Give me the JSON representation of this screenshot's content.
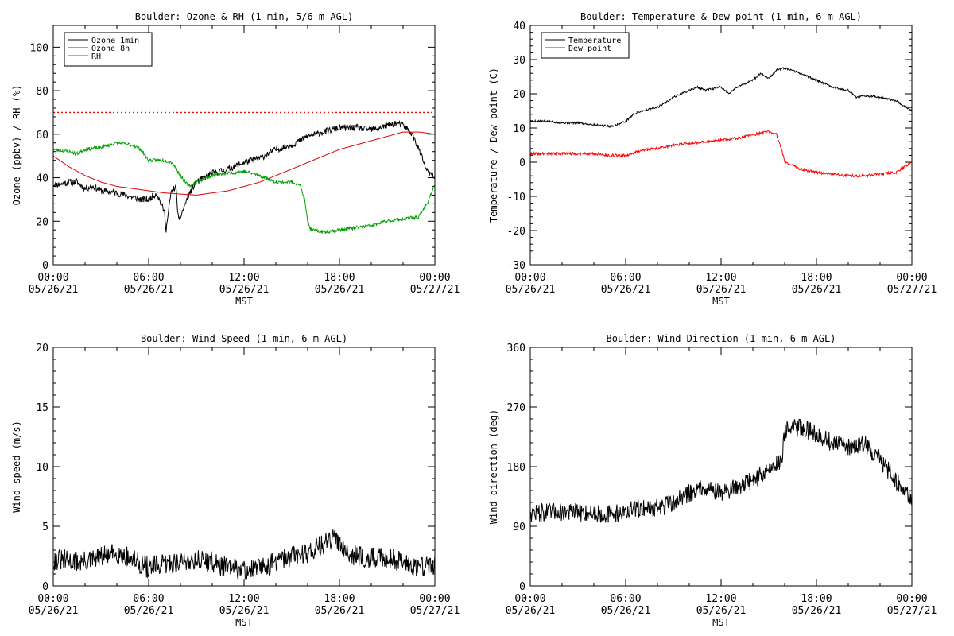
{
  "chart_data": [
    {
      "type": "line",
      "title": "Boulder: Ozone & RH (1 min, 5/6 m AGL)",
      "xlabel": "MST",
      "ylabel": "Ozone (ppbv) / RH (%)",
      "xlim": [
        0,
        24
      ],
      "ylim": [
        0,
        110
      ],
      "y_ticks": [
        0,
        20,
        40,
        60,
        80,
        100
      ],
      "x_tick_labels": [
        [
          "00:00",
          "05/26/21"
        ],
        [
          "06:00",
          "05/26/21"
        ],
        [
          "12:00",
          "05/26/21"
        ],
        [
          "18:00",
          "05/26/21"
        ],
        [
          "00:00",
          "05/27/21"
        ]
      ],
      "legend_position": "top-left",
      "threshold": {
        "value": 70,
        "color": "#ff0000",
        "style": "dotted"
      },
      "series": [
        {
          "name": "Ozone 1min",
          "color": "#000000",
          "noise": 1.5,
          "seed": 11,
          "points": [
            [
              0,
              37
            ],
            [
              0.5,
              37
            ],
            [
              1,
              38
            ],
            [
              1.5,
              38
            ],
            [
              2,
              35
            ],
            [
              2.5,
              36
            ],
            [
              3,
              34
            ],
            [
              4,
              33
            ],
            [
              5,
              31
            ],
            [
              5.5,
              30
            ],
            [
              6,
              30
            ],
            [
              6.5,
              33
            ],
            [
              7,
              24
            ],
            [
              7.1,
              16
            ],
            [
              7.4,
              33
            ],
            [
              7.7,
              36
            ],
            [
              7.9,
              19
            ],
            [
              8,
              22
            ],
            [
              8.5,
              32
            ],
            [
              9,
              38
            ],
            [
              9.5,
              40
            ],
            [
              10,
              42
            ],
            [
              11,
              44
            ],
            [
              12,
              47
            ],
            [
              13,
              49
            ],
            [
              14,
              53
            ],
            [
              15,
              55
            ],
            [
              16,
              59
            ],
            [
              17,
              61
            ],
            [
              18,
              63
            ],
            [
              19,
              63
            ],
            [
              20,
              62
            ],
            [
              21,
              64
            ],
            [
              21.5,
              65
            ],
            [
              22,
              64
            ],
            [
              22.5,
              61
            ],
            [
              23,
              53
            ],
            [
              23.5,
              43
            ],
            [
              24,
              40
            ]
          ]
        },
        {
          "name": "Ozone 8h",
          "color": "#dd0000",
          "noise": 0,
          "seed": 0,
          "points": [
            [
              0,
              50
            ],
            [
              1,
              45
            ],
            [
              2,
              41
            ],
            [
              3,
              38
            ],
            [
              4,
              36
            ],
            [
              5,
              35
            ],
            [
              6,
              34
            ],
            [
              7,
              33
            ],
            [
              8,
              32.5
            ],
            [
              9,
              32
            ],
            [
              10,
              33
            ],
            [
              11,
              34
            ],
            [
              12,
              36
            ],
            [
              13,
              38
            ],
            [
              14,
              41
            ],
            [
              15,
              44
            ],
            [
              16,
              47
            ],
            [
              17,
              50
            ],
            [
              18,
              53
            ],
            [
              19,
              55
            ],
            [
              20,
              57
            ],
            [
              21,
              59
            ],
            [
              22,
              61
            ],
            [
              23,
              61
            ],
            [
              24,
              60
            ]
          ]
        },
        {
          "name": "RH",
          "color": "#00a000",
          "noise": 0.8,
          "seed": 23,
          "points": [
            [
              0,
              53
            ],
            [
              1,
              52
            ],
            [
              1.5,
              51
            ],
            [
              2,
              53
            ],
            [
              3,
              54
            ],
            [
              4,
              56
            ],
            [
              5,
              55
            ],
            [
              5.5,
              53
            ],
            [
              6,
              48
            ],
            [
              7,
              48
            ],
            [
              7.5,
              47
            ],
            [
              8,
              41
            ],
            [
              8.5,
              36
            ],
            [
              9,
              38
            ],
            [
              10,
              41
            ],
            [
              11,
              42
            ],
            [
              12,
              43
            ],
            [
              13,
              41
            ],
            [
              14,
              38
            ],
            [
              15,
              38
            ],
            [
              15.5,
              37
            ],
            [
              15.8,
              30
            ],
            [
              16,
              20
            ],
            [
              16.2,
              16
            ],
            [
              17,
              15
            ],
            [
              18,
              16
            ],
            [
              19,
              17
            ],
            [
              20,
              18
            ],
            [
              21,
              20
            ],
            [
              22,
              21
            ],
            [
              23,
              22
            ],
            [
              23.5,
              28
            ],
            [
              24,
              37
            ]
          ]
        }
      ]
    },
    {
      "type": "line",
      "title": "Boulder: Temperature & Dew point (1 min, 6 m AGL)",
      "xlabel": "MST",
      "ylabel": "Temperature / Dew point (C)",
      "xlim": [
        0,
        24
      ],
      "ylim": [
        -30,
        40
      ],
      "y_ticks": [
        -30,
        -20,
        -10,
        0,
        10,
        20,
        30,
        40
      ],
      "x_tick_labels": [
        [
          "00:00",
          "05/26/21"
        ],
        [
          "06:00",
          "05/26/21"
        ],
        [
          "12:00",
          "05/26/21"
        ],
        [
          "18:00",
          "05/26/21"
        ],
        [
          "00:00",
          "05/27/21"
        ]
      ],
      "legend_position": "top-left",
      "series": [
        {
          "name": "Temperature",
          "color": "#000000",
          "noise": 0.3,
          "seed": 5,
          "points": [
            [
              0,
              12
            ],
            [
              1,
              12
            ],
            [
              2,
              11.5
            ],
            [
              3,
              11.5
            ],
            [
              4,
              11
            ],
            [
              5,
              10.5
            ],
            [
              5.5,
              11
            ],
            [
              6,
              12
            ],
            [
              6.5,
              14
            ],
            [
              7,
              15
            ],
            [
              8,
              16
            ],
            [
              9,
              19
            ],
            [
              10,
              21
            ],
            [
              10.5,
              22
            ],
            [
              11,
              21
            ],
            [
              12,
              22
            ],
            [
              12.5,
              20
            ],
            [
              13,
              22
            ],
            [
              14,
              24
            ],
            [
              14.5,
              26
            ],
            [
              15,
              24.5
            ],
            [
              15.5,
              27
            ],
            [
              16,
              27.5
            ],
            [
              17,
              26
            ],
            [
              18,
              24
            ],
            [
              19,
              22
            ],
            [
              20,
              21
            ],
            [
              20.5,
              19
            ],
            [
              21,
              19.5
            ],
            [
              22,
              19
            ],
            [
              23,
              18
            ],
            [
              23.5,
              16.5
            ],
            [
              24,
              15
            ]
          ]
        },
        {
          "name": "Dew point",
          "color": "#ff0000",
          "noise": 0.4,
          "seed": 9,
          "points": [
            [
              0,
              2.5
            ],
            [
              1,
              2.5
            ],
            [
              2,
              2.5
            ],
            [
              3,
              2.5
            ],
            [
              4,
              2.5
            ],
            [
              5,
              2
            ],
            [
              6,
              2
            ],
            [
              7,
              3.5
            ],
            [
              8,
              4
            ],
            [
              9,
              5
            ],
            [
              10,
              5.5
            ],
            [
              11,
              6
            ],
            [
              12,
              6.5
            ],
            [
              13,
              7
            ],
            [
              14,
              8
            ],
            [
              14.5,
              8.5
            ],
            [
              15,
              9
            ],
            [
              15.5,
              8
            ],
            [
              15.8,
              4
            ],
            [
              16,
              0
            ],
            [
              17,
              -2
            ],
            [
              18,
              -3
            ],
            [
              19,
              -3.5
            ],
            [
              20,
              -4
            ],
            [
              21,
              -4
            ],
            [
              22,
              -3.5
            ],
            [
              23,
              -3
            ],
            [
              24,
              0
            ]
          ]
        }
      ]
    },
    {
      "type": "line",
      "title": "Boulder: Wind Speed (1 min, 6 m AGL)",
      "xlabel": "MST",
      "ylabel": "Wind speed (m/s)",
      "xlim": [
        0,
        24
      ],
      "ylim": [
        0,
        20
      ],
      "y_ticks": [
        0,
        5,
        10,
        15,
        20
      ],
      "x_tick_labels": [
        [
          "00:00",
          "05/26/21"
        ],
        [
          "06:00",
          "05/26/21"
        ],
        [
          "12:00",
          "05/26/21"
        ],
        [
          "18:00",
          "05/26/21"
        ],
        [
          "00:00",
          "05/27/21"
        ]
      ],
      "series": [
        {
          "name": "",
          "color": "#000000",
          "noise": 0.9,
          "seed": 31,
          "points": [
            [
              0,
              2.2
            ],
            [
              2,
              2
            ],
            [
              4,
              2.8
            ],
            [
              5,
              2.2
            ],
            [
              6,
              1.5
            ],
            [
              7,
              1.8
            ],
            [
              8,
              2
            ],
            [
              9,
              2.2
            ],
            [
              10,
              2
            ],
            [
              11,
              1.5
            ],
            [
              12,
              1.3
            ],
            [
              13,
              1.5
            ],
            [
              14,
              2
            ],
            [
              15,
              2.5
            ],
            [
              16,
              2.8
            ],
            [
              17,
              3.5
            ],
            [
              17.8,
              4
            ],
            [
              18.5,
              3
            ],
            [
              19,
              2.5
            ],
            [
              20,
              2.3
            ],
            [
              21,
              2.4
            ],
            [
              22,
              2
            ],
            [
              23,
              1.6
            ],
            [
              24,
              1.8
            ]
          ]
        }
      ]
    },
    {
      "type": "line",
      "title": "Boulder: Wind Direction (1 min, 6 m AGL)",
      "xlabel": "MST",
      "ylabel": "Wind direction (deg)",
      "xlim": [
        0,
        24
      ],
      "ylim": [
        0,
        360
      ],
      "y_ticks": [
        0,
        90,
        180,
        270,
        360
      ],
      "x_tick_labels": [
        [
          "00:00",
          "05/26/21"
        ],
        [
          "06:00",
          "05/26/21"
        ],
        [
          "12:00",
          "05/26/21"
        ],
        [
          "18:00",
          "05/26/21"
        ],
        [
          "00:00",
          "05/27/21"
        ]
      ],
      "series": [
        {
          "name": "",
          "color": "#000000",
          "noise": 14,
          "seed": 47,
          "points": [
            [
              0,
              110
            ],
            [
              2,
              112
            ],
            [
              4,
              110
            ],
            [
              5,
              108
            ],
            [
              6,
              112
            ],
            [
              7,
              118
            ],
            [
              8,
              118
            ],
            [
              9,
              125
            ],
            [
              10,
              140
            ],
            [
              11,
              150
            ],
            [
              12,
              140
            ],
            [
              13,
              150
            ],
            [
              14,
              160
            ],
            [
              15,
              175
            ],
            [
              15.8,
              190
            ],
            [
              16,
              235
            ],
            [
              17,
              240
            ],
            [
              18,
              230
            ],
            [
              19,
              215
            ],
            [
              20,
              210
            ],
            [
              21,
              215
            ],
            [
              22,
              190
            ],
            [
              23,
              160
            ],
            [
              24,
              130
            ]
          ]
        }
      ]
    }
  ]
}
